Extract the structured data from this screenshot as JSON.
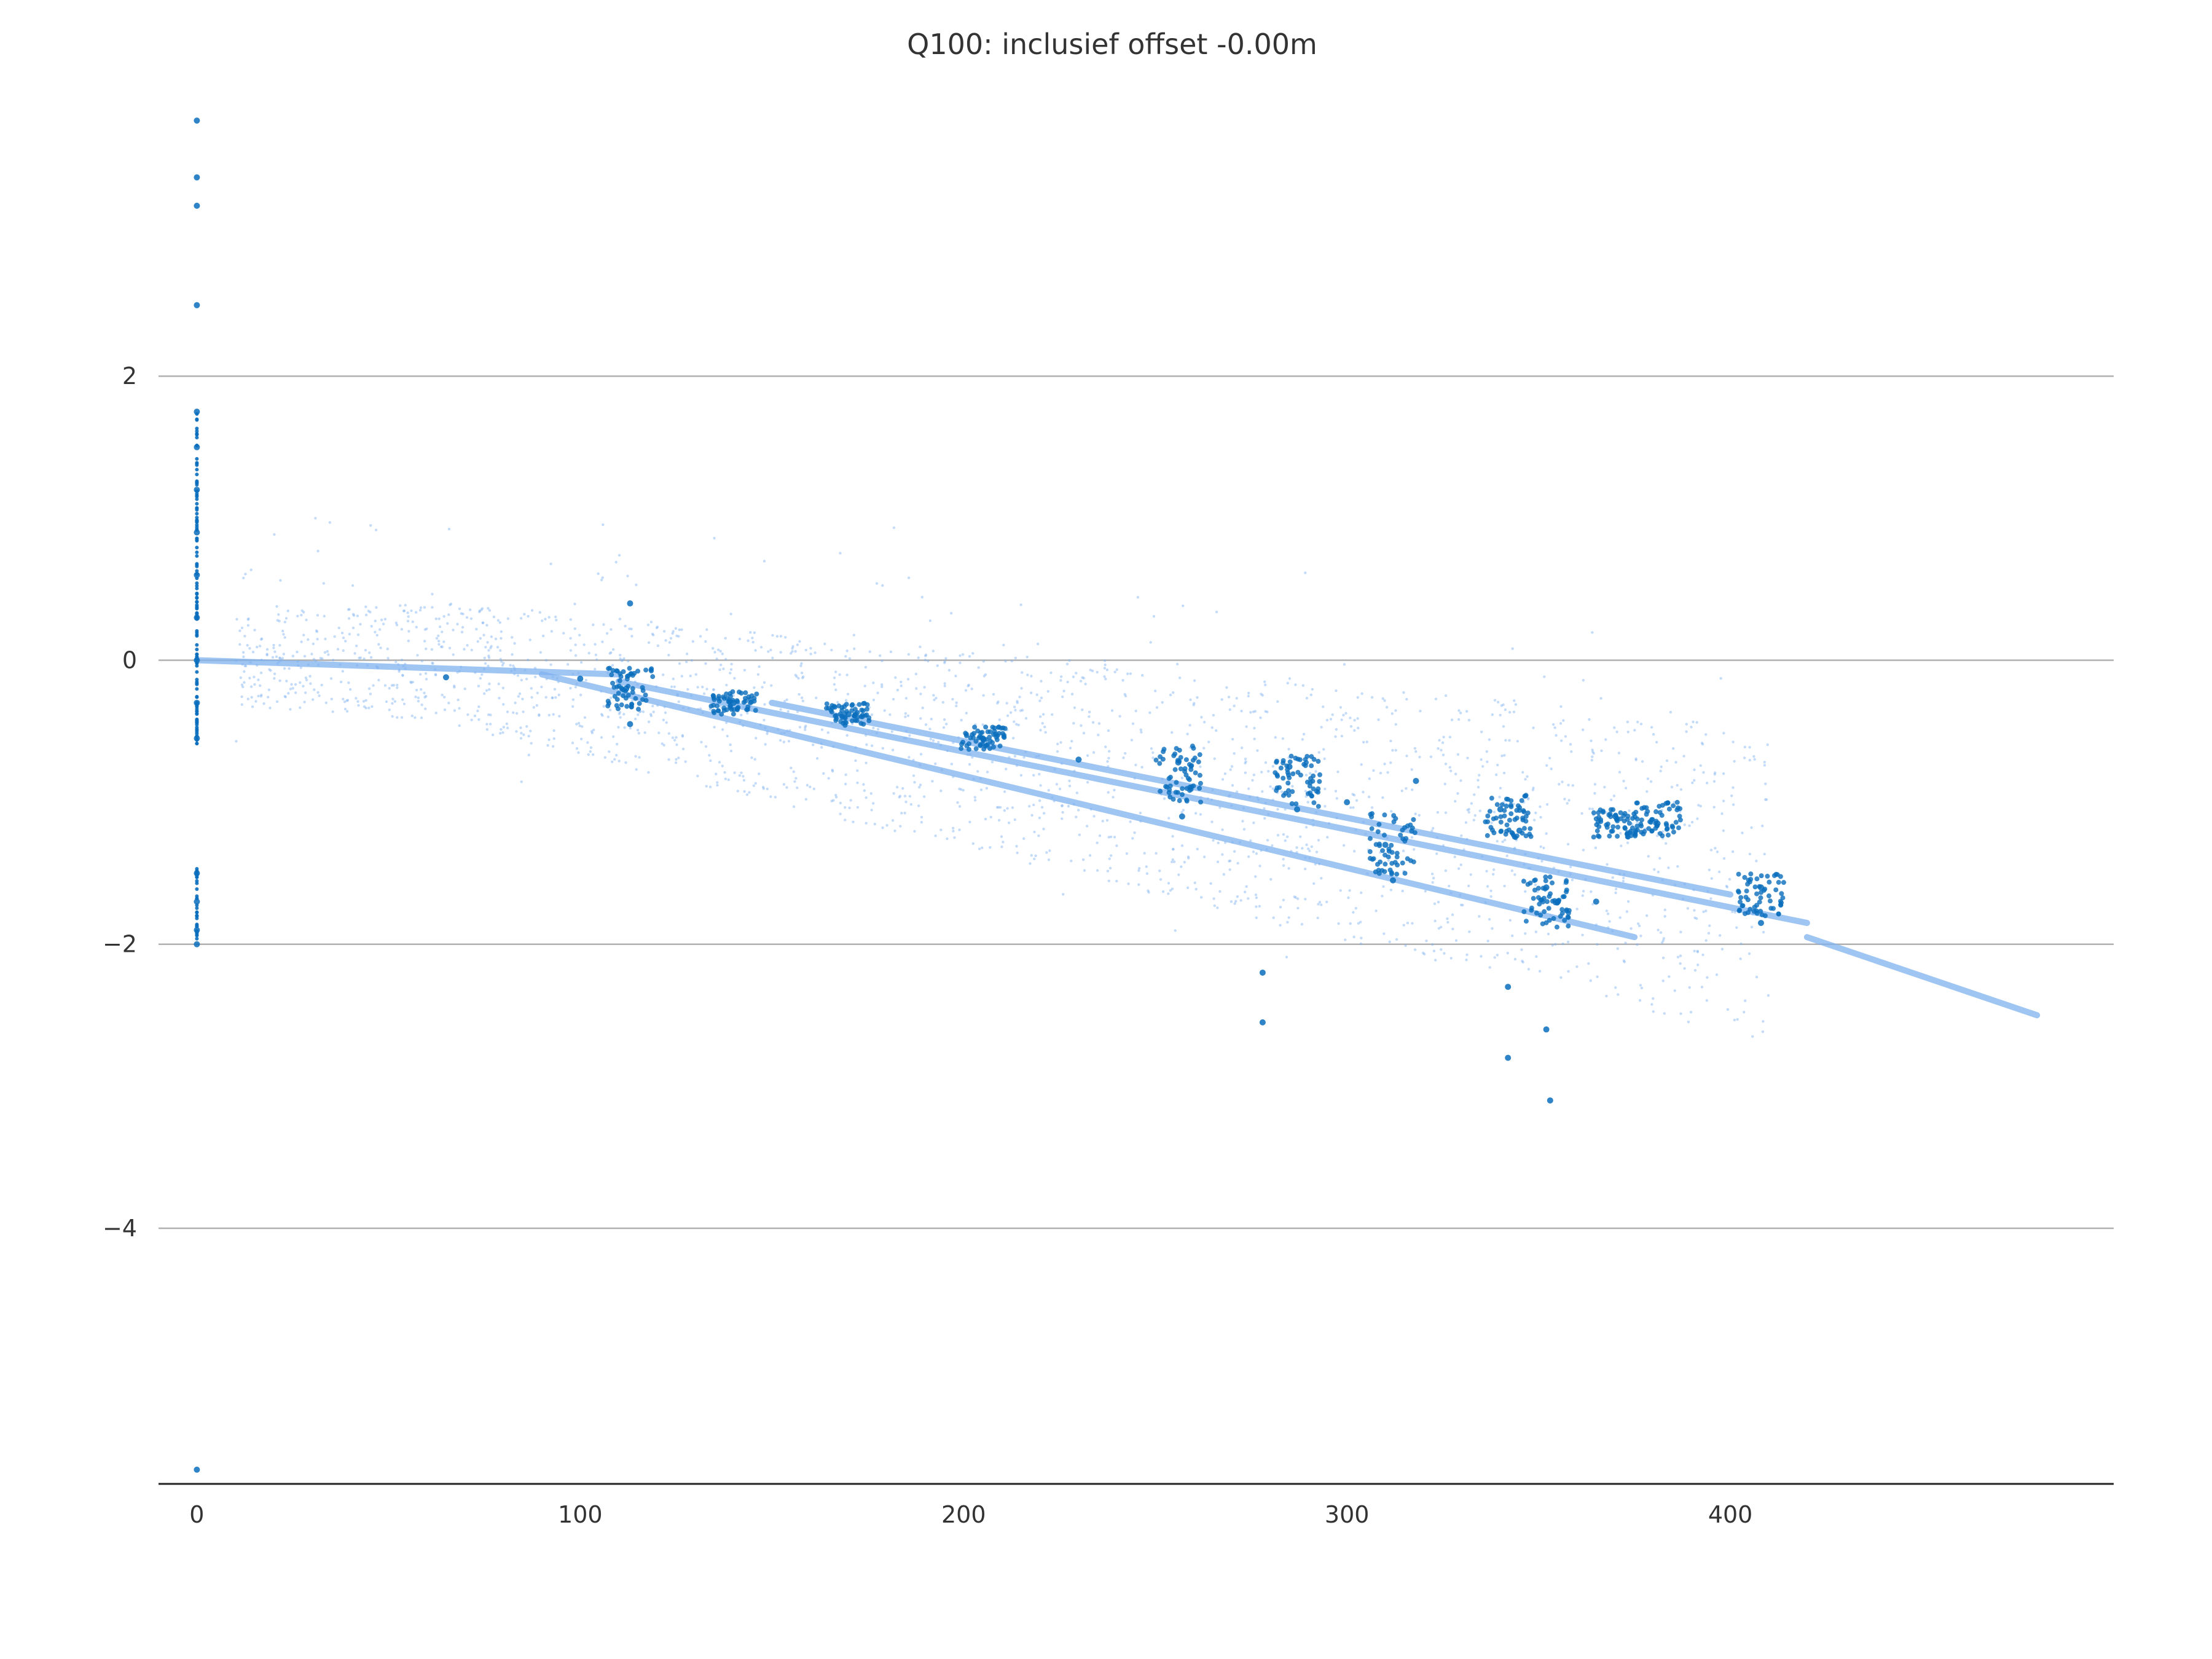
{
  "chart_data": {
    "type": "scatter",
    "title": "Q100: inclusief offset -0.00m",
    "xlabel": "",
    "ylabel": "",
    "xlim": [
      -10,
      500
    ],
    "ylim": [
      -5.8,
      4.0
    ],
    "x_ticks": [
      0,
      100,
      200,
      300,
      400
    ],
    "x_tick_labels": [
      "0",
      "100",
      "200",
      "300",
      "400"
    ],
    "y_ticks": [
      2,
      0,
      -2,
      -4
    ],
    "y_tick_labels": [
      "2",
      "0",
      "−2",
      "−4"
    ],
    "grid": "horizontal",
    "legend": "none",
    "colors": {
      "dark": "#0a6ebd",
      "light": "#7fb2f0",
      "grid": "#b0b0b0",
      "axis": "#222222"
    },
    "series": [
      {
        "color": "#0a6ebd",
        "description_points": [
          [
            0,
            1.75
          ],
          [
            0,
            1.5
          ],
          [
            0,
            1.2
          ],
          [
            0,
            0.9
          ],
          [
            0,
            0.6
          ],
          [
            0,
            0.3
          ],
          [
            0,
            0.0
          ],
          [
            0,
            -0.3
          ],
          [
            0,
            -0.55
          ],
          [
            0,
            -1.5
          ],
          [
            0,
            -1.7
          ],
          [
            0,
            -1.9
          ],
          [
            0,
            -2.0
          ],
          [
            0,
            3.8
          ],
          [
            0,
            3.4
          ],
          [
            0,
            3.2
          ],
          [
            0,
            2.5
          ],
          [
            0,
            -5.7
          ],
          [
            65,
            -0.12
          ],
          [
            100,
            -0.13
          ],
          [
            112,
            -0.2
          ],
          [
            113,
            0.4
          ],
          [
            113,
            -0.45
          ],
          [
            140,
            -0.3
          ],
          [
            170,
            -0.38
          ],
          [
            205,
            -0.55
          ],
          [
            230,
            -0.7
          ],
          [
            256,
            -0.72
          ],
          [
            257,
            -1.1
          ],
          [
            285,
            -0.75
          ],
          [
            287,
            -1.05
          ],
          [
            300,
            -1.0
          ],
          [
            310,
            -1.3
          ],
          [
            312,
            -1.55
          ],
          [
            318,
            -0.85
          ],
          [
            340,
            -1.05
          ],
          [
            345,
            -1.2
          ],
          [
            342,
            -2.3
          ],
          [
            342,
            -2.8
          ],
          [
            352,
            -1.6
          ],
          [
            352,
            -2.6
          ],
          [
            353,
            -3.1
          ],
          [
            355,
            -1.7
          ],
          [
            365,
            -1.7
          ],
          [
            370,
            -1.1
          ],
          [
            381,
            -1.15
          ],
          [
            408,
            -1.6
          ],
          [
            408,
            -1.85
          ],
          [
            278,
            -2.2
          ],
          [
            278,
            -2.55
          ]
        ]
      },
      {
        "color": "#7fb2f0",
        "trend_lines": [
          {
            "x": [
              90,
              375
            ],
            "y": [
              -0.1,
              -1.95
            ]
          },
          {
            "x": [
              110,
              420
            ],
            "y": [
              -0.15,
              -1.85
            ]
          },
          {
            "x": [
              150,
              400
            ],
            "y": [
              -0.3,
              -1.65
            ]
          },
          {
            "x": [
              0,
              110
            ],
            "y": [
              0.0,
              -0.1
            ]
          },
          {
            "x": [
              420,
              480
            ],
            "y": [
              -1.95,
              -2.5
            ]
          }
        ]
      }
    ]
  }
}
